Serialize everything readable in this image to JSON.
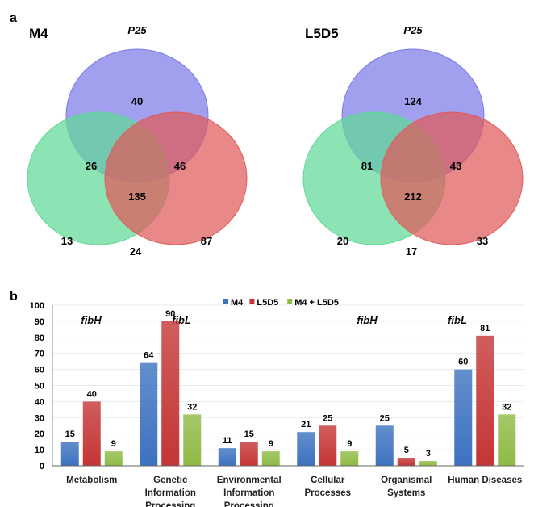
{
  "panel_a_label": "a",
  "panel_b_label": "b",
  "chart_data": [
    {
      "type": "venn",
      "title": "M4",
      "sets": [
        "P25",
        "fibH",
        "fibL"
      ],
      "colors": {
        "P25": "#7b7be8",
        "fibH": "#5fd897",
        "fibL": "#e05a5a"
      },
      "regions": {
        "P25_only": 40,
        "fibH_only": 13,
        "fibL_only": 87,
        "P25_fibH": 26,
        "P25_fibL": 46,
        "fibH_fibL": 24,
        "all": 135
      }
    },
    {
      "type": "venn",
      "title": "L5D5",
      "sets": [
        "P25",
        "fibH",
        "fibL"
      ],
      "colors": {
        "P25": "#7b7be8",
        "fibH": "#5fd897",
        "fibL": "#e05a5a"
      },
      "regions": {
        "P25_only": 124,
        "fibH_only": 20,
        "fibL_only": 33,
        "P25_fibH": 81,
        "P25_fibL": 43,
        "fibH_fibL": 17,
        "all": 212
      }
    },
    {
      "type": "bar",
      "categories": [
        [
          "Metabolism"
        ],
        [
          "Genetic",
          "Information",
          "Processing"
        ],
        [
          "Environmental",
          "Information",
          "Processing"
        ],
        [
          "Cellular",
          "Processes"
        ],
        [
          "Organismal",
          "Systems"
        ],
        [
          "Human Diseases"
        ]
      ],
      "series": [
        {
          "name": "M4",
          "color": "#3d72c0",
          "values": [
            15,
            64,
            11,
            21,
            25,
            60
          ]
        },
        {
          "name": "L5D5",
          "color": "#c53535",
          "values": [
            40,
            90,
            15,
            25,
            5,
            81
          ]
        },
        {
          "name": "M4 + L5D5",
          "color": "#8fba45",
          "values": [
            9,
            32,
            9,
            9,
            3,
            32
          ]
        }
      ],
      "ylim": [
        0,
        100
      ],
      "yticks": [
        0,
        10,
        20,
        30,
        40,
        50,
        60,
        70,
        80,
        90,
        100
      ],
      "grid": true,
      "legend": "top-center",
      "xlabel": "",
      "ylabel": ""
    }
  ]
}
